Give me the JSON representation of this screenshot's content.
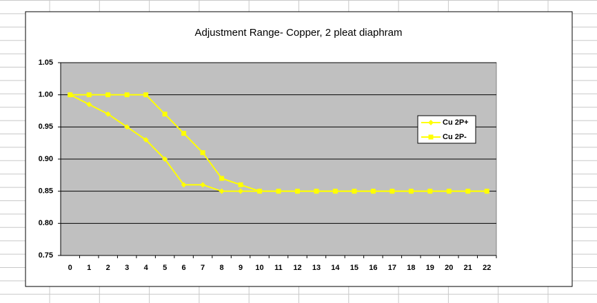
{
  "chart_data": {
    "type": "line",
    "title": "Adjustment Range- Copper, 2 pleat diaphram",
    "categories": [
      0,
      1,
      2,
      3,
      4,
      5,
      6,
      7,
      8,
      9,
      10,
      11,
      12,
      13,
      14,
      15,
      16,
      17,
      18,
      19,
      20,
      21,
      22
    ],
    "series": [
      {
        "name": "Cu 2P+",
        "color": "#ffff00",
        "marker": "diamond",
        "values": [
          1.0,
          0.985,
          0.97,
          0.95,
          0.93,
          0.9,
          0.86,
          0.86,
          0.85,
          0.85,
          0.85,
          0.85,
          0.85,
          0.85,
          0.85,
          0.85,
          0.85,
          0.85,
          0.85,
          0.85,
          0.85,
          0.85,
          0.85
        ]
      },
      {
        "name": "Cu 2P-",
        "color": "#ffff00",
        "marker": "square",
        "values": [
          1.0,
          1.0,
          1.0,
          1.0,
          1.0,
          0.97,
          0.94,
          0.91,
          0.87,
          0.86,
          0.85,
          0.85,
          0.85,
          0.85,
          0.85,
          0.85,
          0.85,
          0.85,
          0.85,
          0.85,
          0.85,
          0.85,
          0.85
        ]
      }
    ],
    "ylim": [
      0.75,
      1.05
    ],
    "yticks": [
      0.75,
      {
        "value": 0.8,
        "label": "0.80"
      },
      0.85,
      {
        "value": 0.9,
        "label": "0.90"
      },
      0.95,
      {
        "value": 1,
        "label": "1.00"
      },
      1.05
    ],
    "grid": true,
    "legend": "right"
  }
}
